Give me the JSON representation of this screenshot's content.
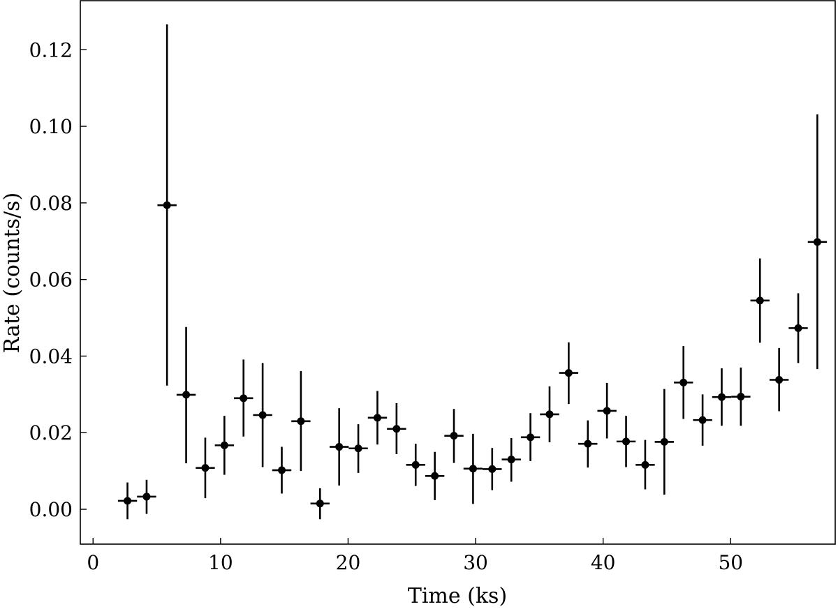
{
  "chart_data": {
    "type": "scatter",
    "xlabel": "Time (ks)",
    "ylabel": "Rate (counts/s)",
    "xlim": [
      -1.0,
      58.2
    ],
    "ylim": [
      -0.0091,
      0.1328
    ],
    "xticks": [
      0,
      10,
      20,
      30,
      40,
      50
    ],
    "xtick_labels": [
      "0",
      "10",
      "20",
      "30",
      "40",
      "50"
    ],
    "yticks": [
      0.0,
      0.02,
      0.04,
      0.06,
      0.08,
      0.1,
      0.12
    ],
    "ytick_labels": [
      "0.00",
      "0.02",
      "0.04",
      "0.06",
      "0.08",
      "0.10",
      "0.12"
    ],
    "grid": false,
    "color": "#000000",
    "x_halfwidth": 0.75,
    "points": [
      {
        "x": 2.7,
        "y": 0.0022,
        "ylo": -0.0026,
        "yhi": 0.007
      },
      {
        "x": 4.2,
        "y": 0.0033,
        "ylo": -0.0012,
        "yhi": 0.0077
      },
      {
        "x": 5.8,
        "y": 0.0794,
        "ylo": 0.0323,
        "yhi": 0.1266
      },
      {
        "x": 7.3,
        "y": 0.0299,
        "ylo": 0.012,
        "yhi": 0.0476
      },
      {
        "x": 8.8,
        "y": 0.0108,
        "ylo": 0.0029,
        "yhi": 0.0187
      },
      {
        "x": 10.3,
        "y": 0.0167,
        "ylo": 0.009,
        "yhi": 0.0244
      },
      {
        "x": 11.8,
        "y": 0.029,
        "ylo": 0.019,
        "yhi": 0.0391
      },
      {
        "x": 13.3,
        "y": 0.0246,
        "ylo": 0.011,
        "yhi": 0.0382
      },
      {
        "x": 14.8,
        "y": 0.0102,
        "ylo": 0.0041,
        "yhi": 0.0163
      },
      {
        "x": 16.3,
        "y": 0.023,
        "ylo": 0.01,
        "yhi": 0.0361
      },
      {
        "x": 17.8,
        "y": 0.0015,
        "ylo": -0.0026,
        "yhi": 0.0055
      },
      {
        "x": 19.3,
        "y": 0.0163,
        "ylo": 0.0062,
        "yhi": 0.0264
      },
      {
        "x": 20.8,
        "y": 0.0159,
        "ylo": 0.0095,
        "yhi": 0.0222
      },
      {
        "x": 22.3,
        "y": 0.0239,
        "ylo": 0.0169,
        "yhi": 0.0309
      },
      {
        "x": 23.8,
        "y": 0.021,
        "ylo": 0.0144,
        "yhi": 0.0277
      },
      {
        "x": 25.3,
        "y": 0.0116,
        "ylo": 0.0061,
        "yhi": 0.0171
      },
      {
        "x": 26.8,
        "y": 0.0087,
        "ylo": 0.0024,
        "yhi": 0.015
      },
      {
        "x": 28.3,
        "y": 0.0192,
        "ylo": 0.0121,
        "yhi": 0.0262
      },
      {
        "x": 29.8,
        "y": 0.0106,
        "ylo": 0.0014,
        "yhi": 0.0197
      },
      {
        "x": 31.3,
        "y": 0.0105,
        "ylo": 0.005,
        "yhi": 0.016
      },
      {
        "x": 32.8,
        "y": 0.013,
        "ylo": 0.0072,
        "yhi": 0.0186
      },
      {
        "x": 34.3,
        "y": 0.0188,
        "ylo": 0.0126,
        "yhi": 0.0251
      },
      {
        "x": 35.8,
        "y": 0.0248,
        "ylo": 0.0175,
        "yhi": 0.0321
      },
      {
        "x": 37.3,
        "y": 0.0356,
        "ylo": 0.0275,
        "yhi": 0.0436
      },
      {
        "x": 38.8,
        "y": 0.0171,
        "ylo": 0.0109,
        "yhi": 0.0232
      },
      {
        "x": 40.3,
        "y": 0.0257,
        "ylo": 0.0185,
        "yhi": 0.033
      },
      {
        "x": 41.8,
        "y": 0.0177,
        "ylo": 0.011,
        "yhi": 0.0244
      },
      {
        "x": 43.3,
        "y": 0.0116,
        "ylo": 0.0052,
        "yhi": 0.0181
      },
      {
        "x": 44.8,
        "y": 0.0176,
        "ylo": 0.0038,
        "yhi": 0.0314
      },
      {
        "x": 46.3,
        "y": 0.0331,
        "ylo": 0.0236,
        "yhi": 0.0426
      },
      {
        "x": 47.8,
        "y": 0.0233,
        "ylo": 0.0166,
        "yhi": 0.03
      },
      {
        "x": 49.3,
        "y": 0.0293,
        "ylo": 0.0218,
        "yhi": 0.0368
      },
      {
        "x": 50.8,
        "y": 0.0294,
        "ylo": 0.0218,
        "yhi": 0.037
      },
      {
        "x": 52.3,
        "y": 0.0545,
        "ylo": 0.0435,
        "yhi": 0.0655
      },
      {
        "x": 53.8,
        "y": 0.0338,
        "ylo": 0.0256,
        "yhi": 0.0421
      },
      {
        "x": 55.3,
        "y": 0.0473,
        "ylo": 0.0382,
        "yhi": 0.0564
      },
      {
        "x": 56.8,
        "y": 0.0698,
        "ylo": 0.0366,
        "yhi": 0.1031
      }
    ]
  }
}
